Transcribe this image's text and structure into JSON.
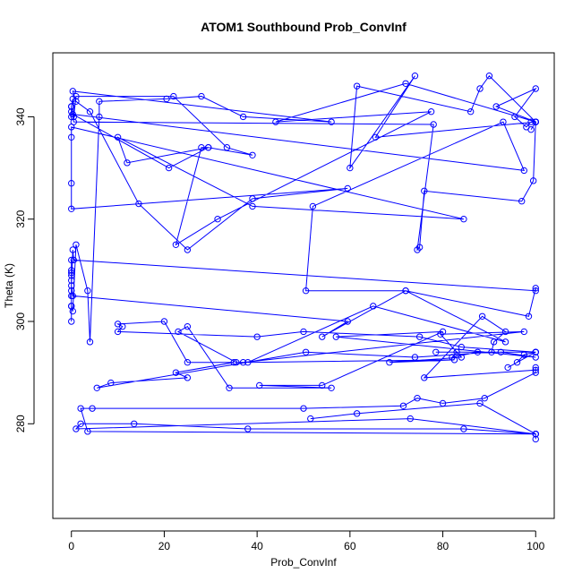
{
  "chart_data": {
    "type": "line",
    "title": "ATOM1 Southbound Prob_ConvInf",
    "xlabel": "Prob_ConvInf",
    "ylabel": "Theta (K)",
    "xlim": [
      -4,
      104
    ],
    "ylim": [
      261.5,
      352.5
    ],
    "xticks": [
      0,
      20,
      40,
      60,
      80,
      100
    ],
    "yticks": [
      280,
      300,
      320,
      340
    ],
    "grid": false,
    "legend": "none",
    "line_color": "#0000ff",
    "series": [
      {
        "name": "Prob_ConvInf",
        "x": [
          0,
          0,
          0,
          0,
          0,
          0,
          0,
          0,
          0,
          0,
          0.3,
          1,
          3.5,
          4,
          6,
          6,
          20.5,
          28,
          37,
          56,
          0.3,
          1,
          4,
          14.5,
          25,
          39,
          59.5,
          0,
          0,
          0,
          0,
          84.5,
          39,
          10,
          12,
          29.5,
          28,
          22.5,
          31.5,
          77.5,
          44,
          72,
          100,
          100,
          65.5,
          74,
          60,
          61.5,
          86,
          88,
          90,
          100,
          99,
          98,
          95.5,
          100,
          91.5,
          100,
          99,
          100,
          99.5,
          97,
          76,
          75,
          74.5,
          78,
          0.5,
          0,
          0,
          0,
          0,
          0.3,
          0.5,
          1,
          22,
          33.5,
          39,
          29.5,
          21,
          0.3,
          97.5,
          93,
          52,
          50.5,
          72,
          54,
          59.5,
          0.3,
          0,
          0.3,
          0.5,
          100,
          100,
          98.5,
          72,
          93.5,
          65,
          38,
          82.5,
          68.5,
          84,
          79.5,
          97.5,
          37,
          35.5,
          23,
          25,
          34,
          56,
          40.5,
          54,
          80,
          57,
          100,
          92.5,
          78.5,
          83,
          82,
          87.5,
          100,
          94,
          96,
          97.5,
          100,
          100,
          84,
          75,
          50,
          40,
          10,
          11,
          10,
          20,
          25,
          35,
          22.5,
          25,
          8.5,
          5.5,
          50.5,
          74,
          90.5,
          91,
          93.5,
          88.5,
          76,
          100,
          100,
          100,
          89,
          80,
          74.5,
          71.5,
          50,
          4.5,
          2,
          3.5,
          100,
          100,
          73,
          1,
          2,
          13.5,
          38,
          84.5,
          100,
          100,
          100,
          88,
          61.5,
          51.5
        ],
        "y": [
          305,
          310,
          303,
          306,
          308,
          309,
          312,
          309.5,
          300,
          303,
          302,
          315,
          306,
          296,
          340,
          343,
          343.5,
          344,
          340,
          339,
          345,
          343,
          341,
          323,
          314,
          324,
          326,
          322,
          327,
          336,
          338,
          320,
          322.5,
          336,
          331,
          334,
          334,
          315,
          320,
          341,
          339,
          346.5,
          339,
          339,
          336,
          348,
          330,
          346,
          341,
          345.5,
          348,
          339,
          339,
          338,
          340,
          345.5,
          342,
          339,
          337.5,
          339,
          327.5,
          323.5,
          325.5,
          314.5,
          314,
          338.5,
          339,
          342,
          340,
          341,
          342,
          343.5,
          340,
          344,
          344,
          334,
          332.5,
          334,
          330,
          340.5,
          329.5,
          339,
          322.5,
          306,
          306,
          297,
          300,
          305,
          307,
          314,
          312,
          306,
          306.5,
          301,
          306,
          296,
          303,
          292,
          292.5,
          292,
          293,
          297.5,
          298,
          292,
          292,
          298,
          299,
          287,
          287,
          287.5,
          287.5,
          298,
          297,
          293,
          294,
          294,
          294,
          293,
          294,
          294,
          291,
          292,
          293.5,
          294,
          294,
          295,
          297,
          298,
          297,
          298,
          299,
          299.5,
          300,
          292,
          292,
          290,
          289,
          288,
          287,
          294,
          293,
          294,
          296,
          298,
          301,
          289,
          290.5,
          291,
          290,
          285,
          284,
          285,
          283.5,
          283,
          283,
          283,
          278.5,
          278,
          278,
          281,
          279,
          280,
          280,
          279,
          279,
          278,
          277,
          278,
          284,
          282,
          281
        ]
      }
    ]
  }
}
